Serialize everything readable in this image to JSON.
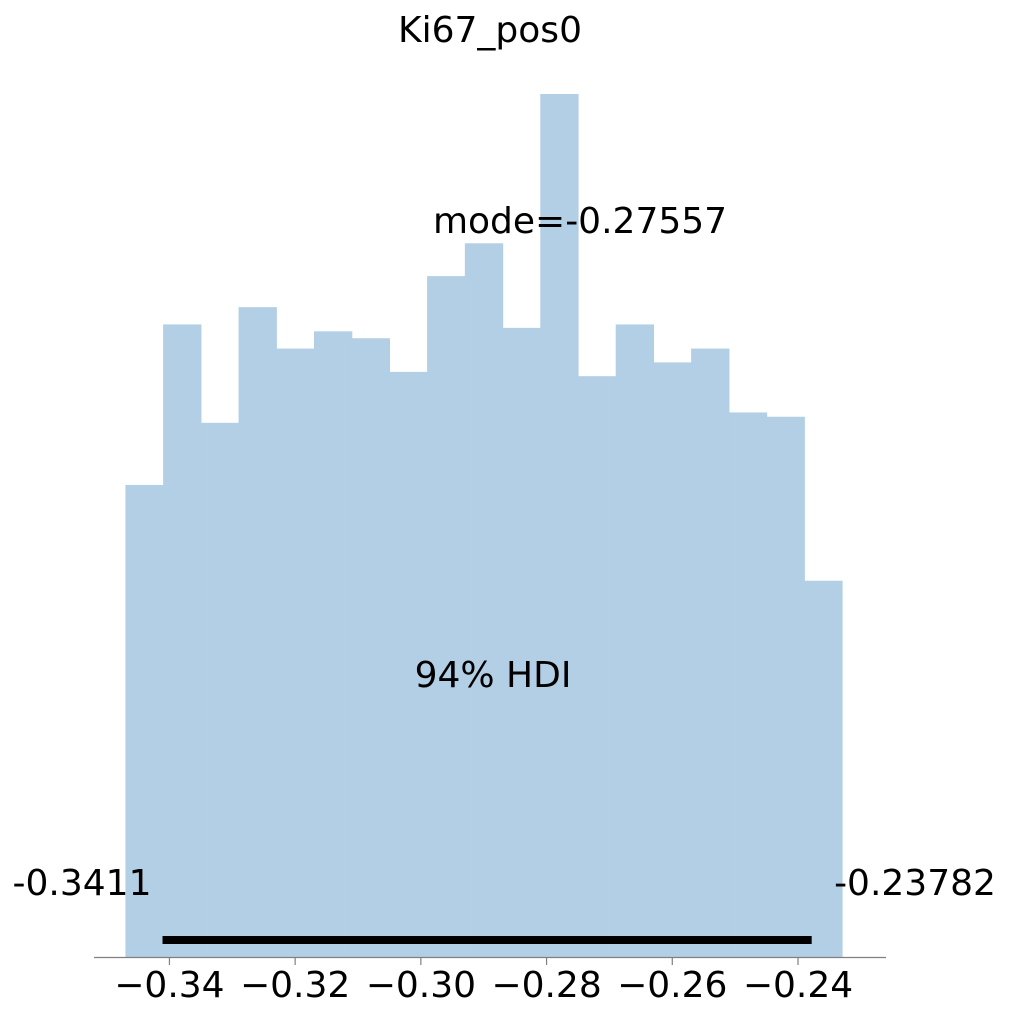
{
  "chart_data": {
    "type": "bar",
    "title": "Ki67_pos0",
    "xlabel": "",
    "ylabel": "",
    "grid": false,
    "xlim": [
      -0.352,
      -0.226
    ],
    "ylim": [
      0,
      1
    ],
    "bar_color": "#b2cfe5",
    "hdi_color": "#000000",
    "bin_edges": [
      -0.347,
      -0.341,
      -0.335,
      -0.329,
      -0.323,
      -0.317,
      -0.311,
      -0.305,
      -0.299,
      -0.293,
      -0.287,
      -0.281,
      -0.275,
      -0.269,
      -0.263,
      -0.257,
      -0.251,
      -0.245,
      -0.239,
      -0.233
    ],
    "values": [
      0.547,
      0.733,
      0.619,
      0.753,
      0.705,
      0.725,
      0.717,
      0.678,
      0.789,
      0.827,
      0.729,
      1.0,
      0.673,
      0.733,
      0.689,
      0.705,
      0.631,
      0.626,
      0.436
    ],
    "x_ticks": [
      {
        "value": -0.34,
        "label": "−0.34"
      },
      {
        "value": -0.32,
        "label": "−0.32"
      },
      {
        "value": -0.3,
        "label": "−0.30"
      },
      {
        "value": -0.28,
        "label": "−0.28"
      },
      {
        "value": -0.26,
        "label": "−0.26"
      },
      {
        "value": -0.24,
        "label": "−0.24"
      }
    ],
    "annotations": {
      "mode_text": "mode=-0.27557",
      "mode_value": -0.27557,
      "hdi_text": "94% HDI",
      "hdi_low": -0.3411,
      "hdi_high": -0.23782,
      "hdi_low_text": "-0.3411",
      "hdi_high_text": "-0.23782"
    }
  }
}
